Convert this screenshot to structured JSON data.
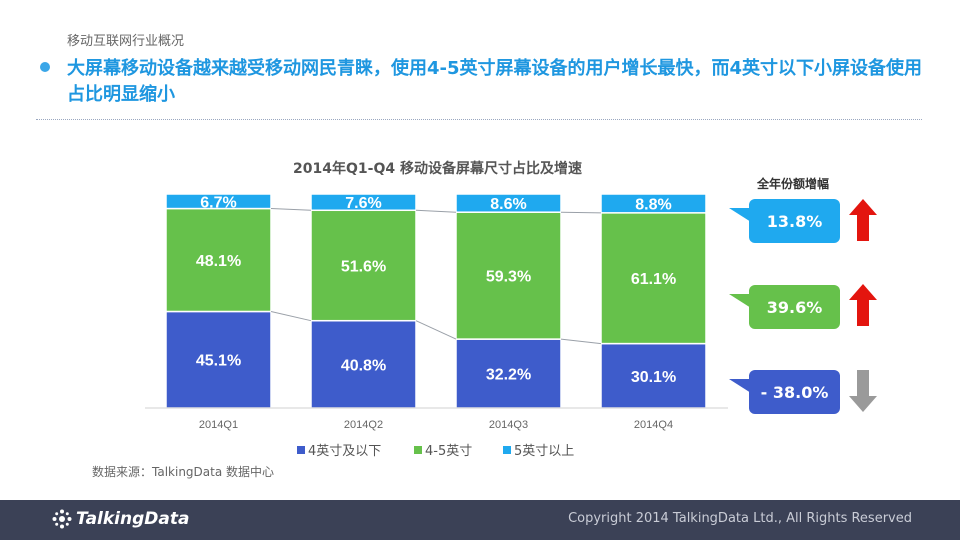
{
  "header": {
    "section_title": "移动互联网行业概况",
    "headline": "大屏幕移动设备越来越受移动网民青睐，使用4-5英寸屏幕设备的用户增长最快，而4英寸以下小屏设备使用占比明显缩小"
  },
  "colors": {
    "accent": "#1f97e0",
    "series_small": "#3e5ccb",
    "series_mid": "#66c14b",
    "series_large": "#1fa9ef",
    "arrow_up": "#e3150f",
    "arrow_down": "#9a9a9a",
    "footer_bg": "#3b4156"
  },
  "chart_data": {
    "type": "bar",
    "stacked": true,
    "title": "2014年Q1-Q4 移动设备屏幕尺寸占比及增速",
    "categories": [
      "2014Q1",
      "2014Q2",
      "2014Q3",
      "2014Q4"
    ],
    "unit": "%",
    "ylim": [
      0,
      100
    ],
    "series": [
      {
        "name": "4英寸及以下",
        "values": [
          45.1,
          40.8,
          32.2,
          30.1
        ],
        "labels": [
          "45.1%",
          "40.8%",
          "32.2%",
          "30.1%"
        ]
      },
      {
        "name": "4-5英寸",
        "values": [
          48.1,
          51.6,
          59.3,
          61.1
        ],
        "labels": [
          "48.1%",
          "51.6%",
          "59.3%",
          "61.1%"
        ]
      },
      {
        "name": "5英寸以上",
        "values": [
          6.7,
          7.6,
          8.6,
          8.8
        ],
        "labels": [
          "6.7%",
          "7.6%",
          "8.6%",
          "8.8%"
        ]
      }
    ],
    "legend_position": "bottom"
  },
  "growth_panel": {
    "header": "全年份额增幅",
    "items": [
      {
        "series": "5英寸以上",
        "value": "13.8%",
        "direction": "up-arrow-icon"
      },
      {
        "series": "4-5英寸",
        "value": "39.6%",
        "direction": "up-arrow-icon"
      },
      {
        "series": "4英寸及以下",
        "value": "- 38.0%",
        "direction": "down-arrow-icon"
      }
    ]
  },
  "source_note": "数据来源：TalkingData 数据中心",
  "footer": {
    "logo_text": "TalkingData",
    "logo_icon": "talkingdata-logo-icon",
    "copyright": "Copyright 2014 TalkingData Ltd., All Rights Reserved"
  }
}
